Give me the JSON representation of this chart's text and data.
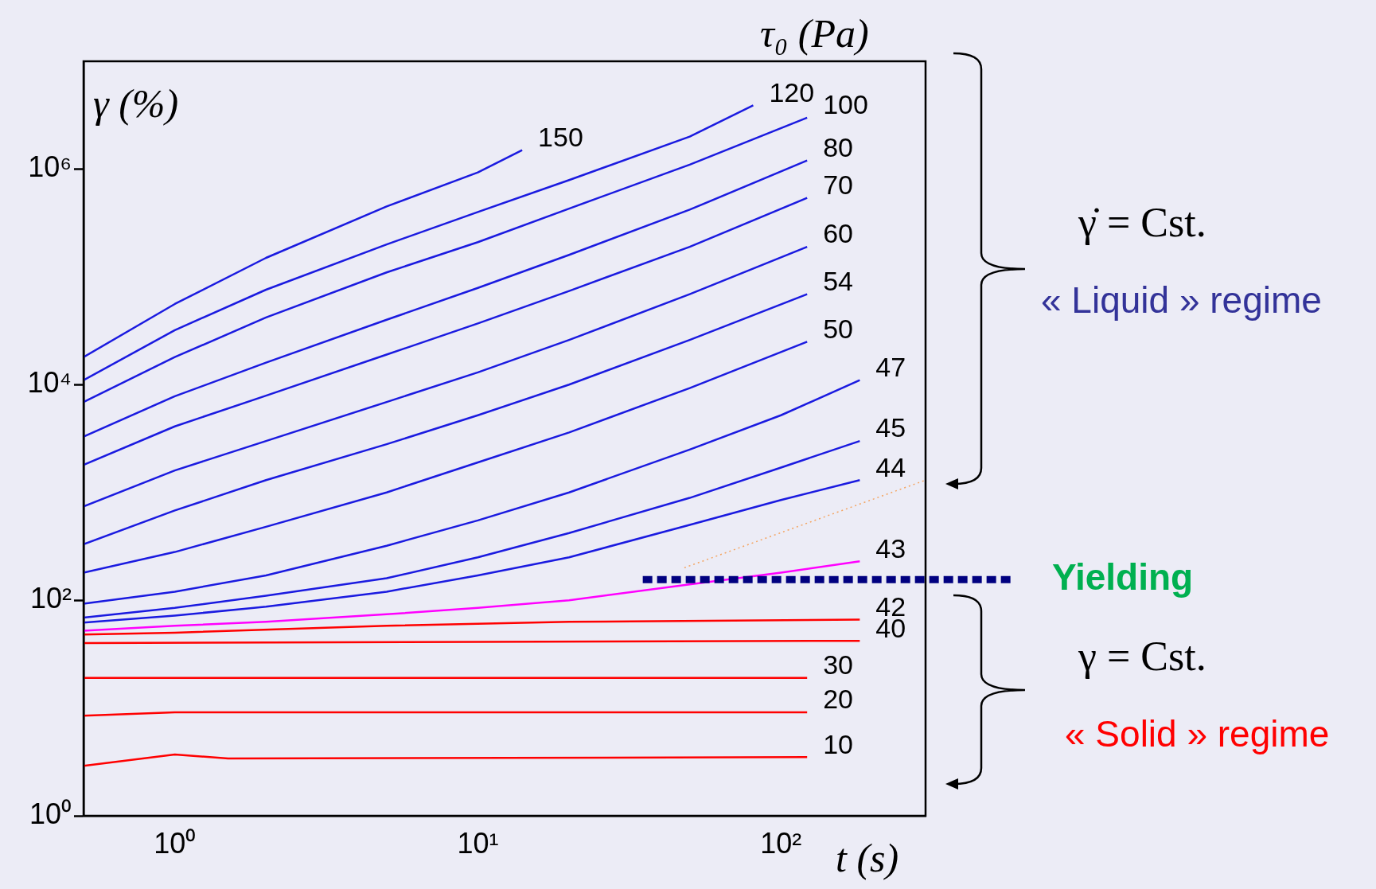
{
  "chart_data": {
    "type": "line",
    "xlabel": "t (s)",
    "ylabel": "γ (%)",
    "legend_title": "τ₀ (Pa)",
    "log": "xy",
    "grid": false,
    "legend": false,
    "marker": "none",
    "xlim": [
      0.5,
      300
    ],
    "xticks": [
      {
        "value": 1,
        "label": "10⁰"
      },
      {
        "value": 10,
        "label": "10¹"
      },
      {
        "value": 100,
        "label": "10²"
      }
    ],
    "ylim": [
      1,
      10000000
    ],
    "yticks": [
      {
        "value": 1,
        "label": "10⁰"
      },
      {
        "value": 100,
        "label": "10²"
      },
      {
        "value": 10000,
        "label": "10⁴"
      },
      {
        "value": 1000000,
        "label": "10⁶"
      }
    ],
    "series": [
      {
        "name": "150",
        "color": "#1a1ae0",
        "x": [
          0.5,
          1,
          2,
          5,
          10,
          14
        ],
        "values": [
          18000,
          56000,
          150000,
          450000,
          930000,
          1500000
        ]
      },
      {
        "name": "120",
        "color": "#1a1ae0",
        "x": [
          0.5,
          1,
          2,
          5,
          10,
          20,
          50,
          81
        ],
        "values": [
          11000,
          32000,
          76000,
          200000,
          400000,
          790000,
          2000000,
          3900000
        ]
      },
      {
        "name": "100",
        "color": "#1a1ae0",
        "x": [
          0.5,
          1,
          2,
          5,
          10,
          20,
          50,
          122
        ],
        "values": [
          6900,
          18000,
          42000,
          110000,
          210000,
          430000,
          1100000,
          3000000
        ]
      },
      {
        "name": "80",
        "color": "#1a1ae0",
        "x": [
          0.5,
          1,
          2,
          5,
          10,
          20,
          50,
          122
        ],
        "values": [
          3300,
          7800,
          16000,
          40000,
          79000,
          160000,
          420000,
          1200000
        ]
      },
      {
        "name": "70",
        "color": "#1a1ae0",
        "x": [
          0.5,
          1,
          2,
          5,
          10,
          20,
          50,
          122
        ],
        "values": [
          1800,
          4100,
          7900,
          19000,
          37000,
          74000,
          190000,
          540000
        ]
      },
      {
        "name": "60",
        "color": "#1a1ae0",
        "x": [
          0.5,
          1,
          2,
          5,
          10,
          20,
          50,
          122
        ],
        "values": [
          740,
          1600,
          3000,
          6900,
          13000,
          26000,
          69000,
          190000
        ]
      },
      {
        "name": "54",
        "color": "#1a1ae0",
        "x": [
          0.5,
          1,
          2,
          5,
          10,
          20,
          50,
          122
        ],
        "values": [
          330,
          680,
          1300,
          2800,
          5200,
          10000,
          26000,
          69000
        ]
      },
      {
        "name": "50",
        "color": "#1a1ae0",
        "x": [
          0.5,
          1,
          2,
          5,
          10,
          20,
          50,
          122
        ],
        "values": [
          180,
          280,
          480,
          1000,
          1900,
          3600,
          9300,
          25000
        ]
      },
      {
        "name": "47",
        "color": "#1a1ae0",
        "x": [
          0.5,
          1,
          2,
          5,
          10,
          20,
          50,
          100,
          182
        ],
        "values": [
          93,
          120,
          170,
          320,
          550,
          1000,
          2500,
          5200,
          11000
        ]
      },
      {
        "name": "45",
        "color": "#1a1ae0",
        "x": [
          0.5,
          1,
          2,
          5,
          10,
          20,
          50,
          100,
          182
        ],
        "values": [
          69,
          85,
          110,
          160,
          250,
          420,
          890,
          1700,
          3000
        ]
      },
      {
        "name": "44",
        "color": "#1a1ae0",
        "x": [
          0.5,
          1,
          2,
          5,
          10,
          20,
          50,
          100,
          182
        ],
        "values": [
          62,
          72,
          87,
          120,
          170,
          250,
          500,
          850,
          1300
        ]
      },
      {
        "name": "43",
        "color": "#ff00ff",
        "x": [
          0.5,
          1,
          2,
          5,
          10,
          20,
          50,
          100,
          182
        ],
        "values": [
          52,
          58,
          63,
          74,
          85,
          100,
          140,
          180,
          230
        ]
      },
      {
        "name": "42",
        "color": "#ff0000",
        "x": [
          0.5,
          1,
          5,
          20,
          182
        ],
        "values": [
          48,
          50,
          58,
          63,
          66
        ]
      },
      {
        "name": "40",
        "color": "#ff0000",
        "x": [
          0.5,
          10,
          182
        ],
        "values": [
          40,
          41,
          42
        ]
      },
      {
        "name": "30",
        "color": "#ff0000",
        "x": [
          0.5,
          1,
          122
        ],
        "values": [
          19,
          19,
          19
        ]
      },
      {
        "name": "20",
        "color": "#ff0000",
        "x": [
          0.5,
          1,
          122
        ],
        "values": [
          8.5,
          9.1,
          9.1
        ]
      },
      {
        "name": "10",
        "color": "#ff0000",
        "x": [
          0.5,
          1,
          1.5,
          122
        ],
        "values": [
          2.9,
          3.7,
          3.4,
          3.5
        ]
      },
      {
        "color": "#f4a460",
        "line_style": "dotted",
        "x": [
          48,
          300
        ],
        "values": [
          200,
          1300
        ]
      }
    ],
    "ref_lines": [
      {
        "axis": "y",
        "value": 155,
        "label": "Yielding",
        "color": "#000080",
        "line_style": "dashed"
      }
    ],
    "annotations": [
      "γ̇ = Cst.",
      "« Liquid » regime",
      "γ = Cst.",
      "« Solid » regime"
    ]
  }
}
